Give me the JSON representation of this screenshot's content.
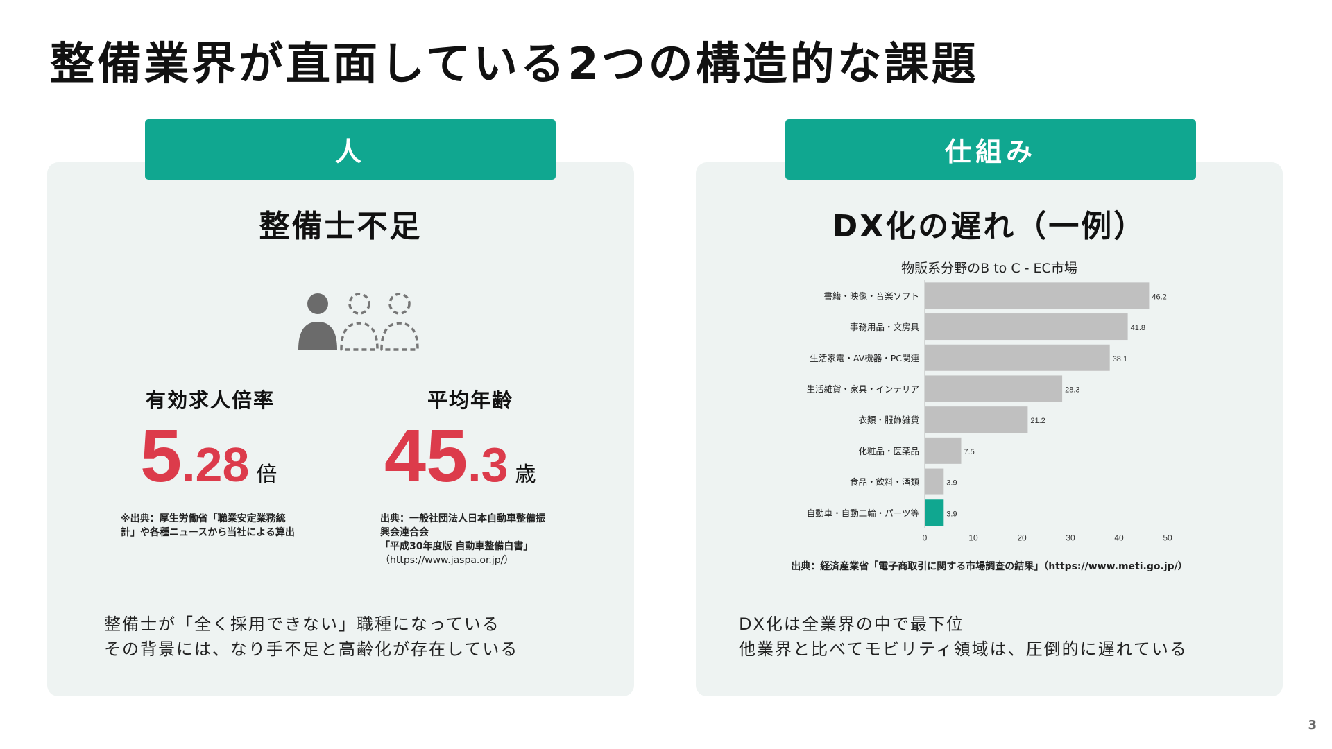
{
  "page": {
    "title": "整備業界が直面している2つの構造的な課題",
    "page_number": "3"
  },
  "left": {
    "tab": "人",
    "title": "整備士不足",
    "icon": "people-icon",
    "stat1": {
      "label": "有効求人倍率",
      "value_int": "5",
      "value_dec": ".28",
      "unit": "倍",
      "source_lines": [
        "※出典：厚生労働省「職業安定業務統",
        "計」や各種ニュースから当社による算出"
      ]
    },
    "stat2": {
      "label": "平均年齢",
      "value_int": "45",
      "value_dec": ".3",
      "unit": "歳",
      "source_lines": [
        "出典：一般社団法人日本自動車整備振",
        "興会連合会",
        "「平成30年度版 自動車整備白書」",
        "（https://www.jaspa.or.jp/）"
      ]
    },
    "footer_lines": [
      "整備士が「全く採用できない」職種になっている",
      "その背景には、なり手不足と高齢化が存在している"
    ]
  },
  "right": {
    "tab": "仕組み",
    "title": "DX化の遅れ（一例）",
    "chart_source": "出典：経済産業省「電子商取引に関する市場調査の結果」（https://www.meti.go.jp/）",
    "footer_lines": [
      "DX化は全業界の中で最下位",
      "他業界と比べてモビリティ領域は、圧倒的に遅れている"
    ]
  },
  "colors": {
    "accent": "#10a790",
    "red": "#dc3b4b",
    "bar": "#c0c0c0",
    "bar_highlight": "#10a790",
    "panel_bg": "#eef3f2"
  },
  "chart_data": {
    "type": "bar",
    "orientation": "horizontal",
    "title": "物販系分野のB to C - EC市場",
    "categories": [
      "書籍・映像・音楽ソフト",
      "事務用品・文房具",
      "生活家電・AV機器・PC関連",
      "生活雑貨・家具・インテリア",
      "衣類・服飾雑貨",
      "化粧品・医薬品",
      "食品・飲料・酒類",
      "自動車・自動二輪・パーツ等"
    ],
    "values": [
      46.2,
      41.8,
      38.1,
      28.3,
      21.2,
      7.5,
      3.9,
      3.9
    ],
    "value_labels": [
      "46.2",
      "41.8",
      "38.1",
      "28.3",
      "21.2",
      "7.5",
      "3.9",
      "3.9"
    ],
    "highlight_index": 7,
    "xlim": [
      0,
      50
    ],
    "xticks": [
      0,
      10,
      20,
      30,
      40,
      50
    ],
    "xtick_labels": [
      "0",
      "10",
      "20",
      "30",
      "40",
      "50"
    ],
    "grid": false,
    "legend": "none"
  }
}
